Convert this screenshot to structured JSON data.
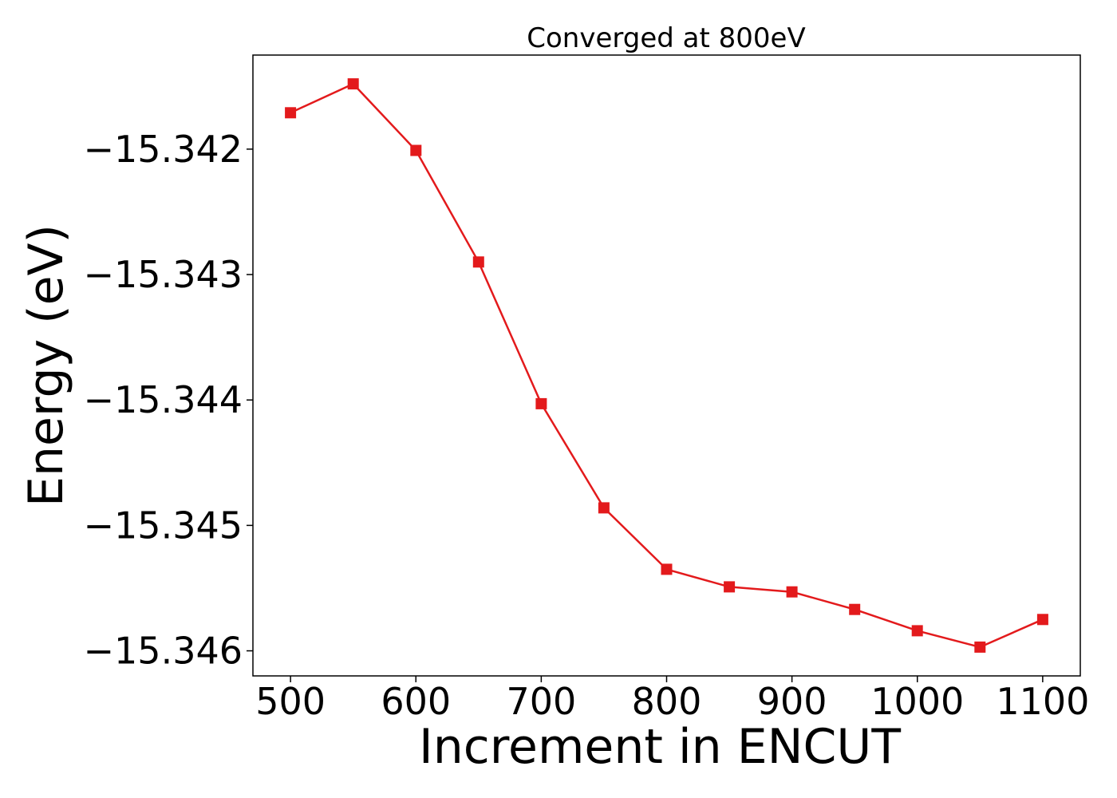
{
  "chart_data": {
    "type": "line",
    "title": "Converged at 800eV",
    "xlabel": "Increment in ENCUT",
    "ylabel": "Energy (eV)",
    "xlim": [
      470,
      1130
    ],
    "ylim": [
      -15.3462,
      -15.34125
    ],
    "xticks": [
      500,
      600,
      700,
      800,
      900,
      1000,
      1100
    ],
    "xtick_labels": [
      "500",
      "600",
      "700",
      "800",
      "900",
      "1000",
      "1100"
    ],
    "yticks": [
      -15.342,
      -15.343,
      -15.344,
      -15.345,
      -15.346
    ],
    "ytick_labels": [
      "−15.342",
      "−15.343",
      "−15.344",
      "−15.345",
      "−15.346"
    ],
    "grid": false,
    "legend": "none",
    "series": [
      {
        "color": "#e31a1c",
        "marker": "square",
        "x": [
          500,
          550,
          600,
          650,
          700,
          750,
          800,
          850,
          900,
          950,
          1000,
          1050,
          1100
        ],
        "y": [
          -15.34171,
          -15.34148,
          -15.34201,
          -15.3429,
          -15.34403,
          -15.34486,
          -15.34535,
          -15.34549,
          -15.34553,
          -15.34567,
          -15.34584,
          -15.34597,
          -15.34575
        ]
      }
    ]
  }
}
